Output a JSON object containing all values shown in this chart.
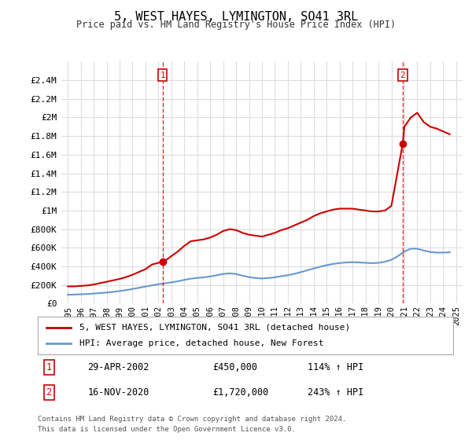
{
  "title": "5, WEST HAYES, LYMINGTON, SO41 3RL",
  "subtitle": "Price paid vs. HM Land Registry's House Price Index (HPI)",
  "legend_line1": "5, WEST HAYES, LYMINGTON, SO41 3RL (detached house)",
  "legend_line2": "HPI: Average price, detached house, New Forest",
  "footer1": "Contains HM Land Registry data © Crown copyright and database right 2024.",
  "footer2": "This data is licensed under the Open Government Licence v3.0.",
  "marker1_label": "1",
  "marker1_date": "29-APR-2002",
  "marker1_price": "£450,000",
  "marker1_hpi": "114% ↑ HPI",
  "marker1_x": 2002.33,
  "marker1_y": 450000,
  "marker2_label": "2",
  "marker2_date": "16-NOV-2020",
  "marker2_price": "£1,720,000",
  "marker2_hpi": "243% ↑ HPI",
  "marker2_x": 2020.88,
  "marker2_y": 1720000,
  "xlim": [
    1994.5,
    2025.5
  ],
  "ylim": [
    0,
    2600000
  ],
  "yticks": [
    0,
    200000,
    400000,
    600000,
    800000,
    1000000,
    1200000,
    1400000,
    1600000,
    1800000,
    2000000,
    2200000,
    2400000
  ],
  "ytick_labels": [
    "£0",
    "£200K",
    "£400K",
    "£600K",
    "£800K",
    "£1M",
    "£1.2M",
    "£1.4M",
    "£1.6M",
    "£1.8M",
    "£2M",
    "£2.2M",
    "£2.4M"
  ],
  "red_color": "#cc0000",
  "blue_color": "#6699cc",
  "marker_box_color": "#cc0000",
  "bg_color": "#ffffff",
  "grid_color": "#dddddd",
  "red_x": [
    1995,
    1995.5,
    1996,
    1996.5,
    1997,
    1997.5,
    1998,
    1998.5,
    1999,
    1999.5,
    2000,
    2000.5,
    2001,
    2001.5,
    2002.33,
    2002.5,
    2003,
    2003.5,
    2004,
    2004.5,
    2005,
    2005.5,
    2006,
    2006.5,
    2007,
    2007.5,
    2008,
    2008.5,
    2009,
    2009.5,
    2010,
    2010.5,
    2011,
    2011.5,
    2012,
    2012.5,
    2013,
    2013.5,
    2014,
    2014.5,
    2015,
    2015.5,
    2016,
    2016.5,
    2017,
    2017.5,
    2018,
    2018.5,
    2019,
    2019.5,
    2020,
    2020.88,
    2021,
    2021.5,
    2022,
    2022.5,
    2023,
    2023.5,
    2024,
    2024.5
  ],
  "red_y": [
    185000,
    185000,
    190000,
    195000,
    205000,
    220000,
    235000,
    250000,
    265000,
    285000,
    310000,
    340000,
    370000,
    420000,
    450000,
    460000,
    510000,
    560000,
    620000,
    670000,
    680000,
    690000,
    710000,
    740000,
    780000,
    800000,
    790000,
    760000,
    740000,
    730000,
    720000,
    740000,
    760000,
    790000,
    810000,
    840000,
    870000,
    900000,
    940000,
    970000,
    990000,
    1010000,
    1020000,
    1020000,
    1020000,
    1010000,
    1000000,
    990000,
    990000,
    1000000,
    1050000,
    1720000,
    1900000,
    2000000,
    2050000,
    1950000,
    1900000,
    1880000,
    1850000,
    1820000
  ],
  "blue_x": [
    1995,
    1995.5,
    1996,
    1996.5,
    1997,
    1997.5,
    1998,
    1998.5,
    1999,
    1999.5,
    2000,
    2000.5,
    2001,
    2001.5,
    2002,
    2002.5,
    2003,
    2003.5,
    2004,
    2004.5,
    2005,
    2005.5,
    2006,
    2006.5,
    2007,
    2007.5,
    2008,
    2008.5,
    2009,
    2009.5,
    2010,
    2010.5,
    2011,
    2011.5,
    2012,
    2012.5,
    2013,
    2013.5,
    2014,
    2014.5,
    2015,
    2015.5,
    2016,
    2016.5,
    2017,
    2017.5,
    2018,
    2018.5,
    2019,
    2019.5,
    2020,
    2020.5,
    2021,
    2021.5,
    2022,
    2022.5,
    2023,
    2023.5,
    2024,
    2024.5
  ],
  "blue_y": [
    95000,
    97000,
    100000,
    103000,
    108000,
    113000,
    119000,
    126000,
    135000,
    145000,
    157000,
    170000,
    183000,
    196000,
    208000,
    218000,
    228000,
    240000,
    255000,
    268000,
    276000,
    282000,
    292000,
    305000,
    318000,
    325000,
    318000,
    300000,
    285000,
    275000,
    270000,
    275000,
    282000,
    295000,
    305000,
    320000,
    338000,
    358000,
    378000,
    396000,
    413000,
    426000,
    436000,
    442000,
    445000,
    442000,
    438000,
    435000,
    438000,
    450000,
    470000,
    510000,
    560000,
    590000,
    590000,
    570000,
    555000,
    548000,
    548000,
    552000
  ]
}
